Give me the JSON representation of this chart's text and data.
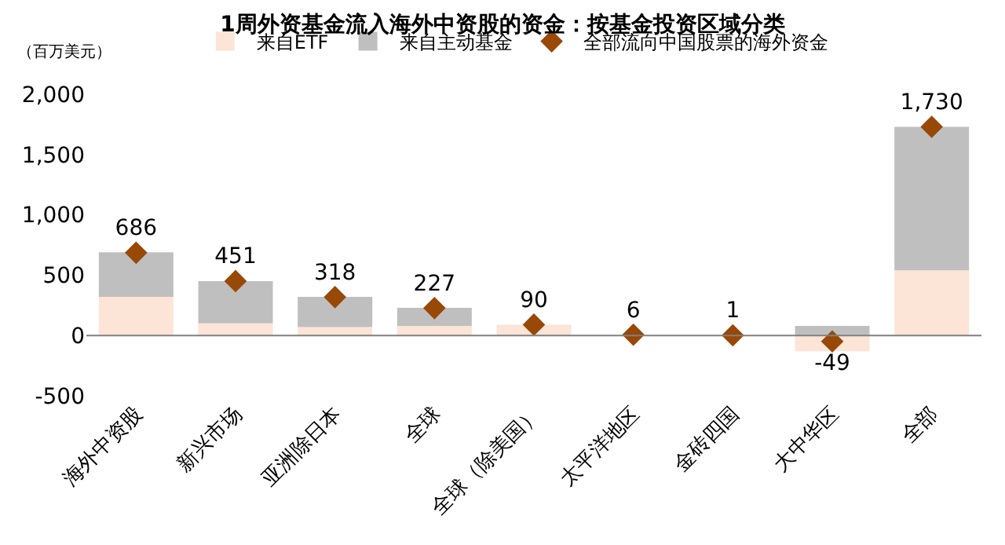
{
  "chart_data": {
    "type": "bar",
    "title": "1周外资基金流入海外中资股的资金：按基金投资区域分类",
    "annotations": [
      "（百万美元）"
    ],
    "categories": [
      "海外中资股",
      "新兴市场",
      "亚洲除日本",
      "全球",
      "全球（除美国）",
      "太平洋地区",
      "金砖四国",
      "大中华区",
      "全部"
    ],
    "stacked": true,
    "series": [
      {
        "name": "来自ETF",
        "color": "#fce4d6",
        "values": [
          320,
          100,
          70,
          80,
          90,
          null,
          null,
          -130,
          540
        ]
      },
      {
        "name": "来自主动基金",
        "color": "#bfbfbf",
        "values": [
          370,
          350,
          250,
          150,
          0,
          0,
          0,
          80,
          1190
        ]
      },
      {
        "name": "全部流向中国股票的海外资金",
        "type": "scatter",
        "marker": "diamond",
        "color": "#984807",
        "values": [
          686,
          451,
          318,
          227,
          90,
          6,
          1,
          -49,
          1730
        ],
        "value_labels": [
          "686",
          "451",
          "318",
          "227",
          "90",
          "6",
          "1",
          "-49",
          "1,730"
        ]
      }
    ],
    "ref_lines": [
      {
        "axis": "y",
        "value": 0,
        "color": "#808080"
      }
    ],
    "ylim": [
      -500,
      2000
    ],
    "yticks": [
      {
        "value": -500,
        "label": "-500"
      },
      0,
      500,
      {
        "value": 1000,
        "label": "1,000"
      },
      {
        "value": 1500,
        "label": "1,500"
      },
      {
        "value": 2000,
        "label": "2,000"
      }
    ],
    "legend": "top"
  }
}
